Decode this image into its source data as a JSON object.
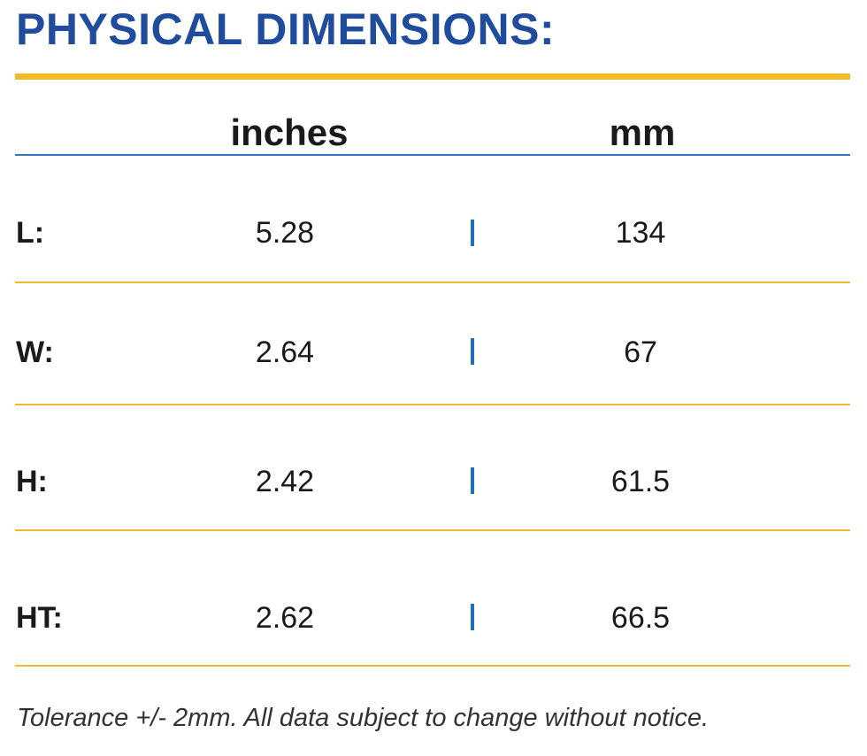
{
  "title": "PHYSICAL DIMENSIONS:",
  "columns": {
    "inches": "inches",
    "mm": "mm"
  },
  "rows": [
    {
      "label": "L:",
      "inches": "5.28",
      "mm": "134"
    },
    {
      "label": "W:",
      "inches": "2.64",
      "mm": "67"
    },
    {
      "label": "H:",
      "inches": "2.42",
      "mm": "61.5"
    },
    {
      "label": "HT:",
      "inches": "2.62",
      "mm": "66.5"
    }
  ],
  "footnote": "Tolerance +/- 2mm. All data subject to change without notice.",
  "colors": {
    "title": "#1f4c9c",
    "accent_rule": "#f0bb25",
    "header_rule": "#2e79b8",
    "separator": "#1f70b5"
  }
}
